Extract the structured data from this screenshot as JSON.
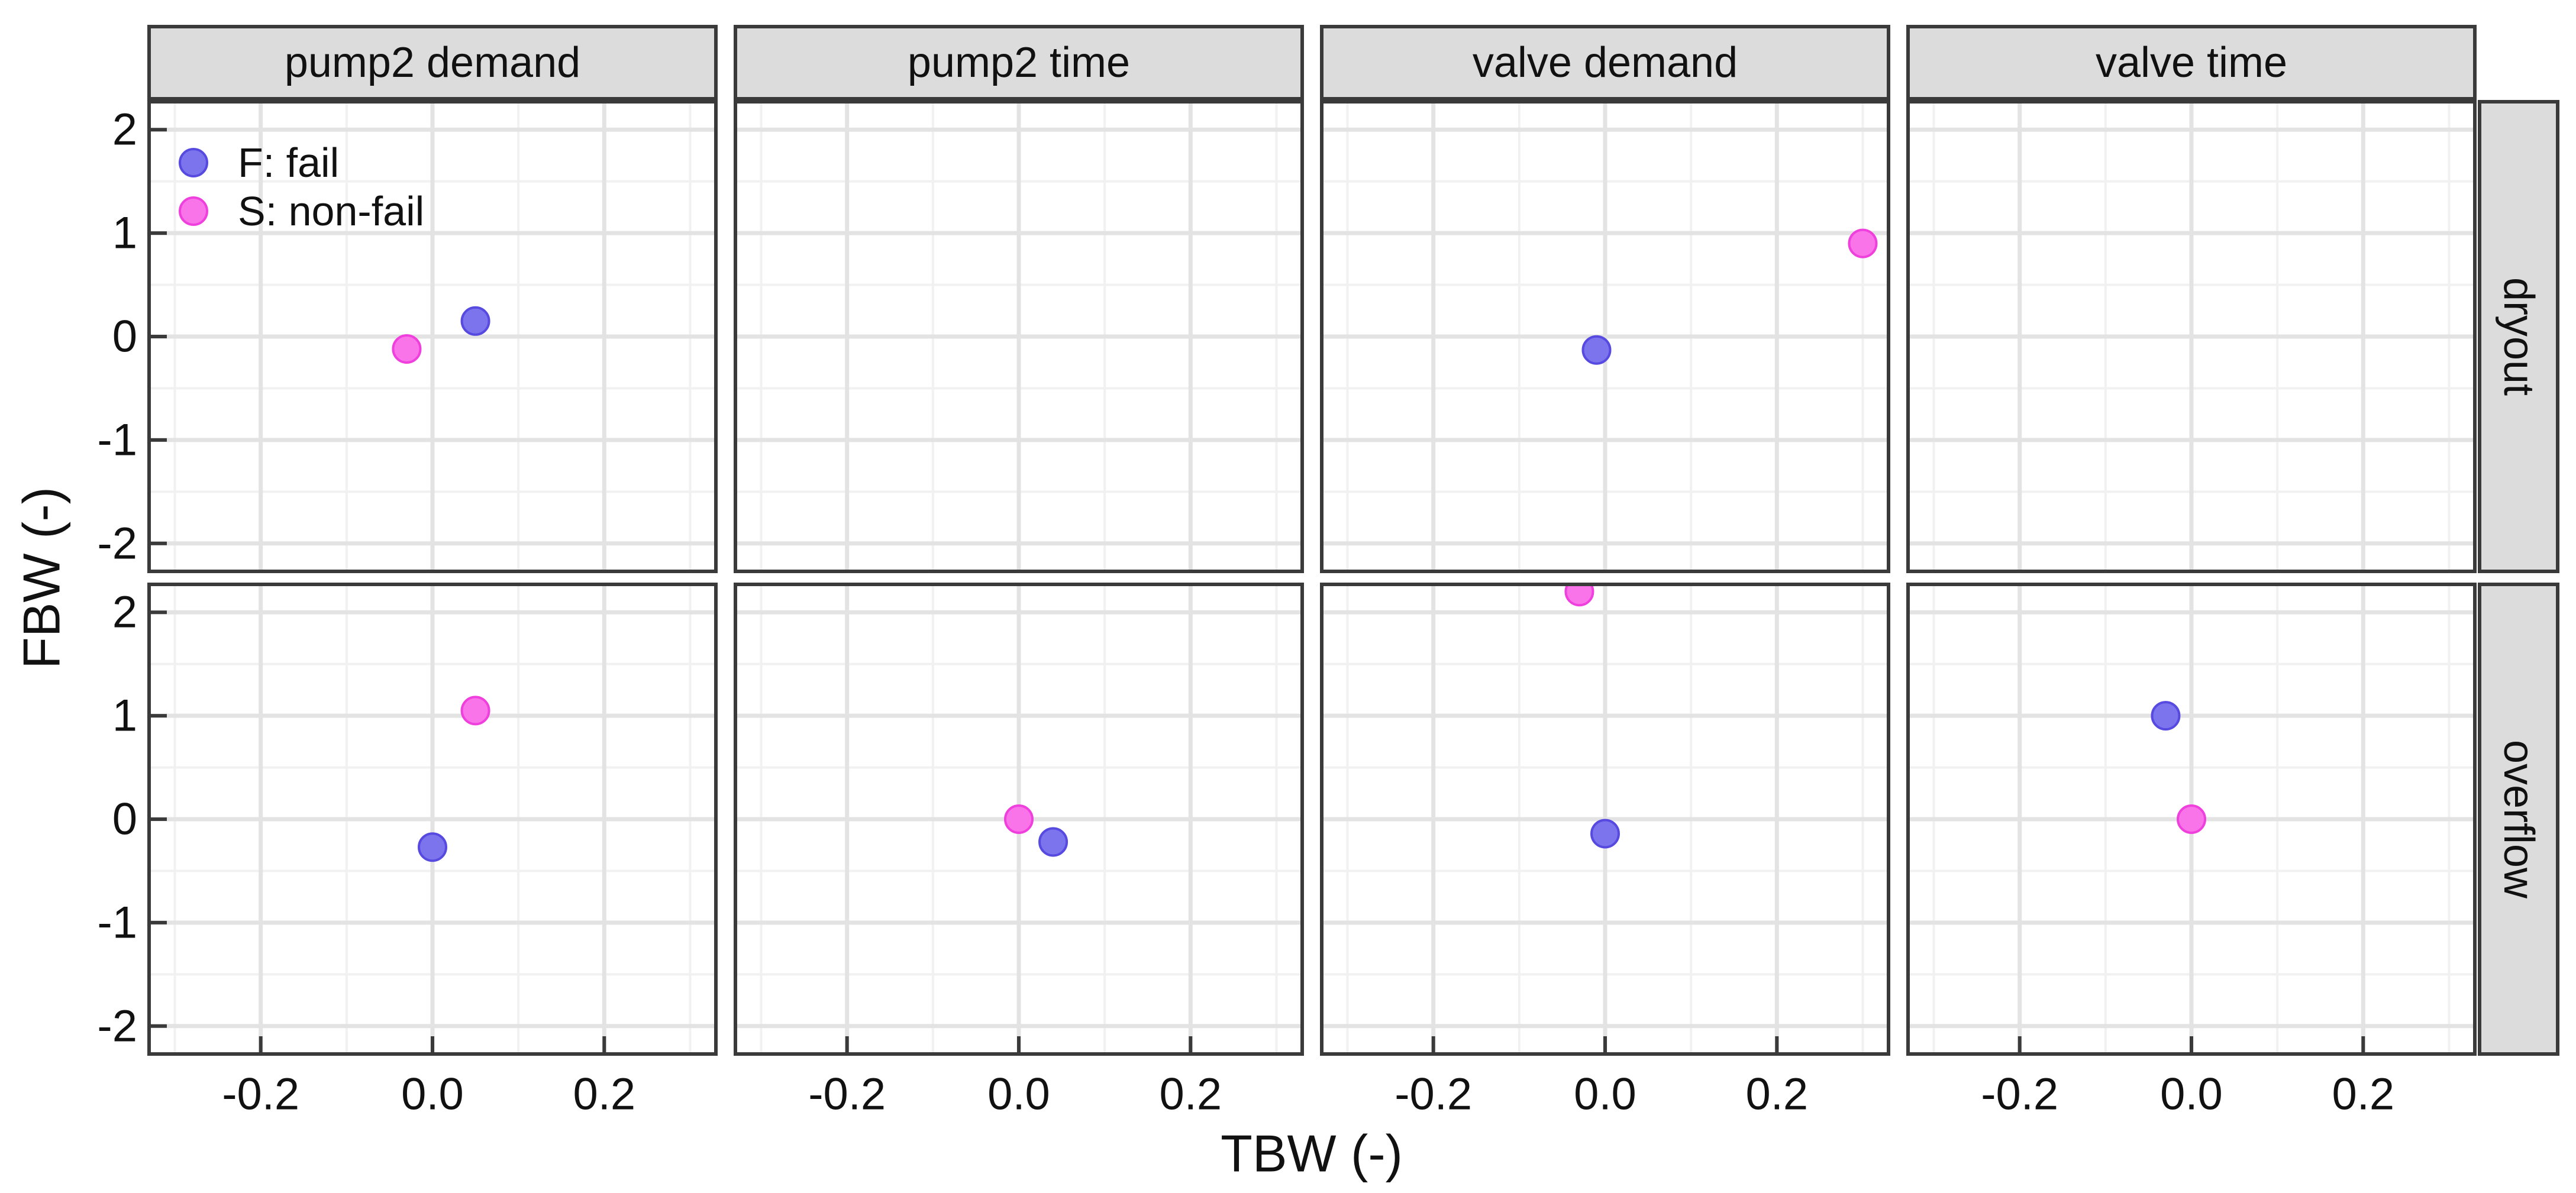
{
  "chart_data": {
    "type": "scatter",
    "facet_cols": [
      "pump2 demand",
      "pump2 time",
      "valve demand",
      "valve time"
    ],
    "facet_rows": [
      "dryout",
      "overflow"
    ],
    "xlabel": "TBW (-)",
    "ylabel": "FBW (-)",
    "xlim": [
      -0.33,
      0.33
    ],
    "ylim": [
      -2.27,
      2.27
    ],
    "x_ticks": [
      -0.2,
      0.0,
      0.2
    ],
    "x_tick_labels": [
      "-0.2",
      "0.0",
      "0.2"
    ],
    "y_ticks": [
      2,
      1,
      0,
      -1,
      -2
    ],
    "y_tick_labels": [
      "2",
      "1",
      "0",
      "-1",
      "-2"
    ],
    "x_minor_gridlines": [
      -0.3,
      -0.1,
      0.1,
      0.3
    ],
    "y_minor_gridlines": [
      -1.5,
      -0.5,
      0.5,
      1.5
    ],
    "grid": "on",
    "legend_position": "inside-top-left-first-panel",
    "colors": {
      "fail_fill": "#7b74ec",
      "fail_stroke": "#564ae0",
      "nonfail_fill": "#fa74e9",
      "nonfail_stroke": "#ef3fdc",
      "strip_background": "#dcdcdc",
      "panel_border": "#3a3a3a",
      "major_grid": "#e3e3e3",
      "minor_grid": "#f1f1f1",
      "text": "#111111"
    },
    "legend": [
      {
        "label": "F: fail"
      },
      {
        "label": "S: non-fail"
      }
    ],
    "series": [
      {
        "name": "F: fail",
        "points": [
          {
            "row": "dryout",
            "col": "pump2 demand",
            "x": 0.05,
            "y": 0.15
          },
          {
            "row": "dryout",
            "col": "valve demand",
            "x": -0.01,
            "y": -0.13
          },
          {
            "row": "overflow",
            "col": "pump2 demand",
            "x": 0.0,
            "y": -0.27
          },
          {
            "row": "overflow",
            "col": "pump2 time",
            "x": 0.04,
            "y": -0.22
          },
          {
            "row": "overflow",
            "col": "valve demand",
            "x": 0.0,
            "y": -0.14
          },
          {
            "row": "overflow",
            "col": "valve time",
            "x": -0.03,
            "y": 1.0
          }
        ]
      },
      {
        "name": "S: non-fail",
        "points": [
          {
            "row": "dryout",
            "col": "pump2 demand",
            "x": -0.03,
            "y": -0.12
          },
          {
            "row": "dryout",
            "col": "valve demand",
            "x": 0.3,
            "y": 0.9
          },
          {
            "row": "overflow",
            "col": "pump2 demand",
            "x": 0.05,
            "y": 1.05
          },
          {
            "row": "overflow",
            "col": "pump2 time",
            "x": 0.0,
            "y": 0.0
          },
          {
            "row": "overflow",
            "col": "valve demand",
            "x": -0.03,
            "y": 2.2
          },
          {
            "row": "overflow",
            "col": "valve time",
            "x": 0.0,
            "y": 0.0
          }
        ]
      }
    ]
  }
}
